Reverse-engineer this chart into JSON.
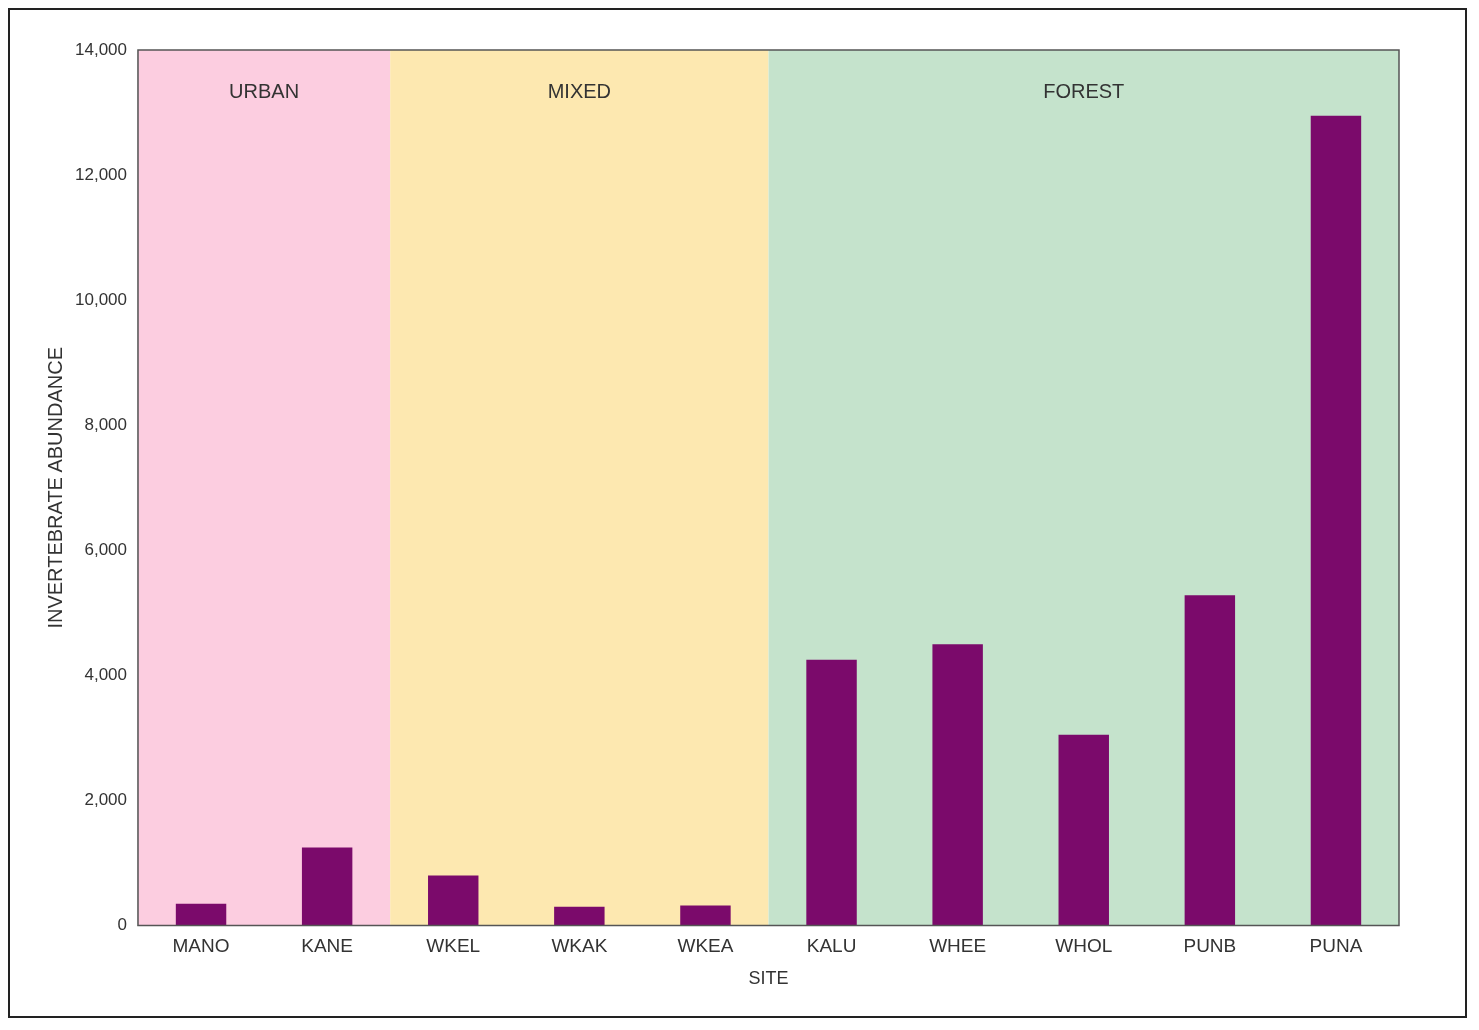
{
  "chart_data": {
    "type": "bar",
    "xlabel": "SITE",
    "ylabel": "INVERTEBRATE ABUNDANCE",
    "categories": [
      "MANO",
      "KANE",
      "WKEL",
      "WKAK",
      "WKEA",
      "KALU",
      "WHEE",
      "WHOL",
      "PUNB",
      "PUNA"
    ],
    "values": [
      350,
      1250,
      800,
      300,
      320,
      4250,
      4500,
      3050,
      5280,
      12950
    ],
    "color": "#7b0a6b",
    "ylim": [
      0,
      14000
    ],
    "yticks": [
      0,
      {
        "value": 2000,
        "label": "2,000"
      },
      {
        "value": 4000,
        "label": "4,000"
      },
      {
        "value": 6000,
        "label": "6,000"
      },
      {
        "value": 8000,
        "label": "8,000"
      },
      {
        "value": 10000,
        "label": "10,000"
      },
      {
        "value": 12000,
        "label": "12,000"
      },
      {
        "value": 14000,
        "label": "14,000"
      }
    ],
    "bands": [
      {
        "axis": "x",
        "from": "MANO",
        "to": "KANE",
        "label": "URBAN",
        "color": "#fccde0"
      },
      {
        "axis": "x",
        "from": "WKEL",
        "to": "WKEA",
        "label": "MIXED",
        "color": "#fde8b0"
      },
      {
        "axis": "x",
        "from": "KALU",
        "to": "PUNA",
        "label": "FOREST",
        "color": "#c5e3cc"
      }
    ],
    "grid": false,
    "legend": false
  }
}
